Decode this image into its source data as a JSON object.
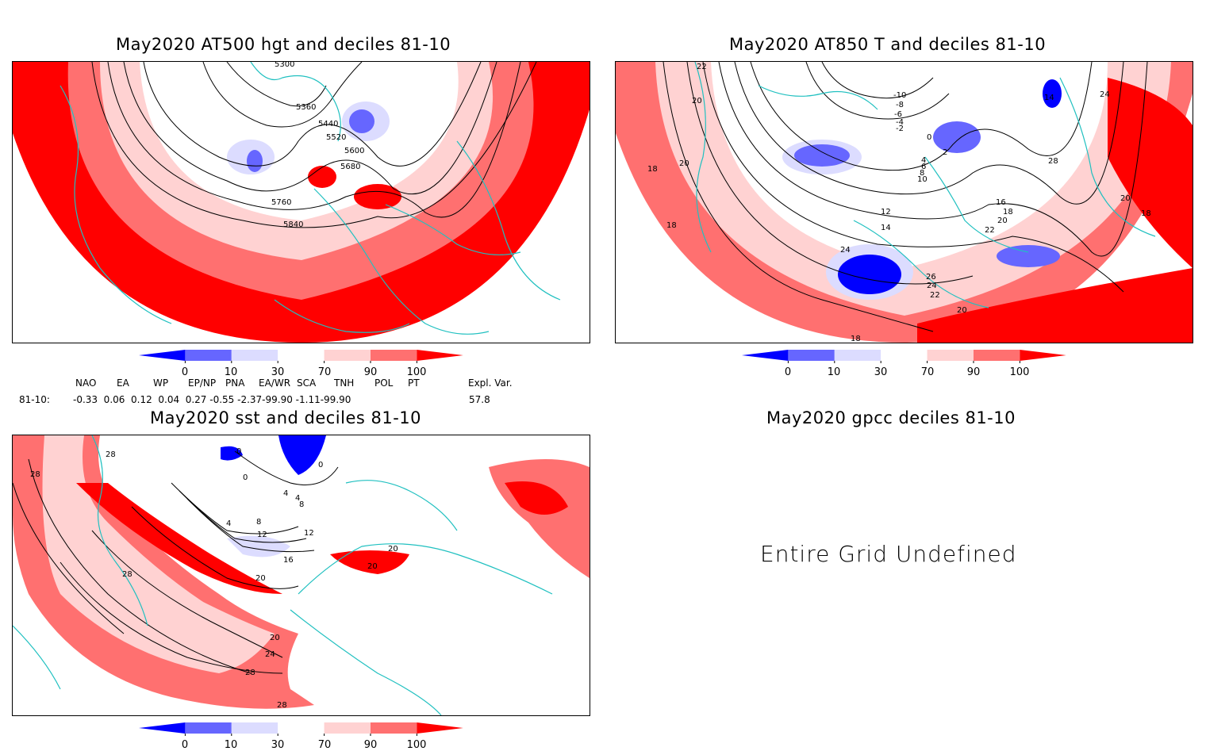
{
  "panels": {
    "hgt500": {
      "title": "May2020 AT500 hgt and deciles 81-10",
      "contour_labels": [
        "5300",
        "5360",
        "5440",
        "5520",
        "5600",
        "5680",
        "5760",
        "5840"
      ]
    },
    "t850": {
      "title": "May2020 AT850 T and deciles 81-10",
      "contour_labels": [
        "22",
        "20",
        "18",
        "20",
        "18",
        "-10",
        "-8",
        "-6",
        "-4",
        "-2",
        "0",
        "2",
        "4",
        "6",
        "8",
        "10",
        "12",
        "14",
        "16",
        "18",
        "20",
        "22",
        "24",
        "26",
        "24",
        "22",
        "20",
        "18",
        "14",
        "28",
        "24",
        "20",
        "18"
      ]
    },
    "sst": {
      "title": "May2020 sst and deciles 81-10",
      "contour_labels": [
        "28",
        "28",
        "0",
        "0",
        "0",
        "4",
        "4",
        "8",
        "4",
        "8",
        "12",
        "12",
        "16",
        "20",
        "20",
        "20",
        "20",
        "24",
        "28",
        "28",
        "28"
      ]
    },
    "gpcc": {
      "title": "May2020 gpcc deciles 81-10",
      "message": "Entire Grid Undefined"
    }
  },
  "colorbar": {
    "tick_labels": [
      "0",
      "10",
      "30",
      "70",
      "90",
      "100"
    ],
    "colors": [
      "#0000ff",
      "#6666ff",
      "#dcdcff",
      "#ffffff",
      "#ffd2d2",
      "#ff7070",
      "#ff0000"
    ]
  },
  "indices": {
    "row_label": "81-10:",
    "headers": [
      "NAO",
      "EA",
      "WP",
      "EP/NP",
      "PNA",
      "EA/WR",
      "SCA",
      "TNH",
      "POL",
      "PT",
      "Expl. Var."
    ],
    "values_text": "-0.33  0.06  0.12  0.04  0.27 -0.55 -2.37-99.90 -1.11-99.90",
    "expl_var": "57.8"
  },
  "colors": {
    "coast": "#20c0c0",
    "contour": "#000000",
    "frame": "#000000"
  }
}
